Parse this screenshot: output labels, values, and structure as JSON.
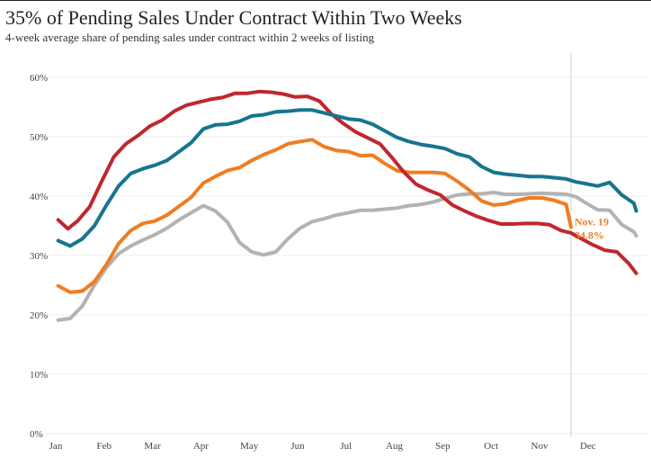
{
  "title": "35% of Pending Sales Under Contract Within Two Weeks",
  "subtitle": "4-week average share of pending sales under contract within 2 weeks of listing",
  "colors": {
    "red": "#c0272d",
    "teal": "#16758f",
    "orange": "#ef7d22",
    "gray": "#b3b3b3",
    "grid": "#ececec",
    "marker": "#d4d4d4"
  },
  "chart_data": {
    "type": "line",
    "title": "35% of Pending Sales Under Contract Within Two Weeks",
    "subtitle": "4-week average share of pending sales under contract within 2 weeks of listing",
    "xlabel": "",
    "ylabel": "",
    "ylim": [
      0,
      60
    ],
    "xlim": [
      0,
      12
    ],
    "grid": true,
    "yticks": [
      {
        "value": 0,
        "label": "0%"
      },
      {
        "value": 10,
        "label": "10%"
      },
      {
        "value": 20,
        "label": "20%"
      },
      {
        "value": 30,
        "label": "30%"
      },
      {
        "value": 40,
        "label": "40%"
      },
      {
        "value": 50,
        "label": "50%"
      },
      {
        "value": 60,
        "label": "60%"
      }
    ],
    "xticks": [
      {
        "value": 0,
        "label": "Jan"
      },
      {
        "value": 1,
        "label": "Feb"
      },
      {
        "value": 2,
        "label": "Mar"
      },
      {
        "value": 3,
        "label": "Apr"
      },
      {
        "value": 4,
        "label": "May"
      },
      {
        "value": 5,
        "label": "Jun"
      },
      {
        "value": 6,
        "label": "Jul"
      },
      {
        "value": 7,
        "label": "Aug"
      },
      {
        "value": 8,
        "label": "Sep"
      },
      {
        "value": 9,
        "label": "Oct"
      },
      {
        "value": 10,
        "label": "Nov"
      },
      {
        "value": 11,
        "label": "Dec"
      }
    ],
    "current_marker_x": 10.65,
    "series": [
      {
        "key": "red",
        "x": [
          0.05,
          0.25,
          0.45,
          0.7,
          0.95,
          1.2,
          1.45,
          1.7,
          1.95,
          2.2,
          2.45,
          2.7,
          2.95,
          3.2,
          3.45,
          3.7,
          3.95,
          4.2,
          4.45,
          4.7,
          4.95,
          5.2,
          5.45,
          5.7,
          5.95,
          6.2,
          6.45,
          6.7,
          6.95,
          7.2,
          7.45,
          7.7,
          7.95,
          8.2,
          8.45,
          8.7,
          8.95,
          9.2,
          9.45,
          9.7,
          9.95,
          10.2,
          10.45,
          10.65,
          10.85,
          11.1,
          11.35,
          11.6,
          11.85,
          12.0
        ],
        "values": [
          36.0,
          34.5,
          35.8,
          38.2,
          42.5,
          46.6,
          48.8,
          50.2,
          51.8,
          52.8,
          54.3,
          55.3,
          55.8,
          56.3,
          56.6,
          57.3,
          57.3,
          57.6,
          57.5,
          57.2,
          56.7,
          56.8,
          56.0,
          53.8,
          52.2,
          50.8,
          49.8,
          48.8,
          46.5,
          44.0,
          42.0,
          41.0,
          40.2,
          38.5,
          37.5,
          36.6,
          35.9,
          35.3,
          35.3,
          35.4,
          35.4,
          35.2,
          34.2,
          33.8,
          32.9,
          31.8,
          30.9,
          30.6,
          28.6,
          27.0
        ]
      },
      {
        "key": "teal",
        "x": [
          0.05,
          0.3,
          0.55,
          0.8,
          1.05,
          1.3,
          1.55,
          1.8,
          2.05,
          2.3,
          2.55,
          2.8,
          3.05,
          3.3,
          3.55,
          3.8,
          4.05,
          4.3,
          4.55,
          4.8,
          5.05,
          5.3,
          5.55,
          5.8,
          6.05,
          6.3,
          6.55,
          6.8,
          7.05,
          7.3,
          7.55,
          7.8,
          8.05,
          8.3,
          8.55,
          8.8,
          9.05,
          9.3,
          9.55,
          9.8,
          10.05,
          10.3,
          10.55,
          10.75,
          10.95,
          11.2,
          11.45,
          11.7,
          11.95,
          12.0
        ],
        "values": [
          32.5,
          31.6,
          32.8,
          35.0,
          38.5,
          41.7,
          43.8,
          44.6,
          45.2,
          46.0,
          47.5,
          49.0,
          51.3,
          52.0,
          52.1,
          52.6,
          53.5,
          53.7,
          54.2,
          54.3,
          54.5,
          54.5,
          54.0,
          53.5,
          53.0,
          52.8,
          52.1,
          51.0,
          49.9,
          49.2,
          48.7,
          48.4,
          48.0,
          47.1,
          46.6,
          45.0,
          44.0,
          43.7,
          43.5,
          43.3,
          43.3,
          43.1,
          42.9,
          42.4,
          42.1,
          41.7,
          42.3,
          40.2,
          38.8,
          37.5
        ]
      },
      {
        "key": "orange",
        "x": [
          0.05,
          0.3,
          0.55,
          0.8,
          1.05,
          1.3,
          1.55,
          1.8,
          2.05,
          2.3,
          2.55,
          2.8,
          3.05,
          3.3,
          3.55,
          3.8,
          4.05,
          4.3,
          4.55,
          4.8,
          5.05,
          5.3,
          5.55,
          5.8,
          6.05,
          6.3,
          6.55,
          6.8,
          7.05,
          7.3,
          7.55,
          7.8,
          8.05,
          8.3,
          8.55,
          8.8,
          9.05,
          9.3,
          9.55,
          9.8,
          10.05,
          10.3,
          10.55,
          10.65
        ],
        "values": [
          24.9,
          23.8,
          24.0,
          25.6,
          28.5,
          32.0,
          34.2,
          35.4,
          35.8,
          36.8,
          38.3,
          39.8,
          42.2,
          43.3,
          44.3,
          44.8,
          46.0,
          47.0,
          47.8,
          48.8,
          49.2,
          49.5,
          48.3,
          47.7,
          47.5,
          46.8,
          46.9,
          45.5,
          44.3,
          44.0,
          44.0,
          44.0,
          43.8,
          42.5,
          41.0,
          39.2,
          38.5,
          38.7,
          39.3,
          39.7,
          39.7,
          39.3,
          38.6,
          34.8
        ]
      },
      {
        "key": "gray",
        "x": [
          0.05,
          0.3,
          0.55,
          0.8,
          1.05,
          1.3,
          1.55,
          1.8,
          2.05,
          2.3,
          2.55,
          2.8,
          3.05,
          3.3,
          3.55,
          3.8,
          4.05,
          4.3,
          4.55,
          4.8,
          5.05,
          5.3,
          5.55,
          5.8,
          6.05,
          6.3,
          6.55,
          6.8,
          7.05,
          7.3,
          7.55,
          7.8,
          8.05,
          8.3,
          8.55,
          8.8,
          9.05,
          9.3,
          9.55,
          9.8,
          10.05,
          10.3,
          10.55,
          10.75,
          10.95,
          11.2,
          11.45,
          11.7,
          11.95,
          12.0
        ],
        "values": [
          19.1,
          19.4,
          21.5,
          25.0,
          28.0,
          30.3,
          31.6,
          32.6,
          33.5,
          34.6,
          36.0,
          37.2,
          38.4,
          37.5,
          35.6,
          32.2,
          30.6,
          30.1,
          30.6,
          32.8,
          34.6,
          35.7,
          36.2,
          36.8,
          37.2,
          37.6,
          37.6,
          37.8,
          38.0,
          38.4,
          38.6,
          39.0,
          39.6,
          40.2,
          40.4,
          40.4,
          40.6,
          40.3,
          40.3,
          40.4,
          40.5,
          40.4,
          40.3,
          39.9,
          38.9,
          37.7,
          37.6,
          35.2,
          34.0,
          33.3
        ]
      }
    ],
    "annotations": [
      {
        "text": "Nov. 19",
        "color": "#ef7d22"
      },
      {
        "text": "34.8%",
        "color": "#ef7d22"
      }
    ]
  }
}
